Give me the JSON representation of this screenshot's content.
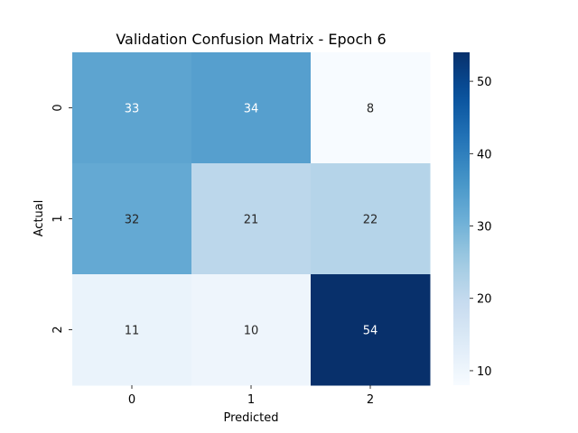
{
  "chart_data": {
    "type": "heatmap",
    "title": "Validation Confusion Matrix - Epoch 6",
    "xlabel": "Predicted",
    "ylabel": "Actual",
    "x_categories": [
      "0",
      "1",
      "2"
    ],
    "y_categories": [
      "0",
      "1",
      "2"
    ],
    "values": [
      [
        33,
        34,
        8
      ],
      [
        32,
        21,
        22
      ],
      [
        11,
        10,
        54
      ]
    ],
    "colormap": "Blues",
    "colorbar": {
      "min": 8,
      "max": 54,
      "ticks": [
        10,
        20,
        30,
        40,
        50
      ]
    },
    "grid": false,
    "legend": "colorbar-right"
  }
}
